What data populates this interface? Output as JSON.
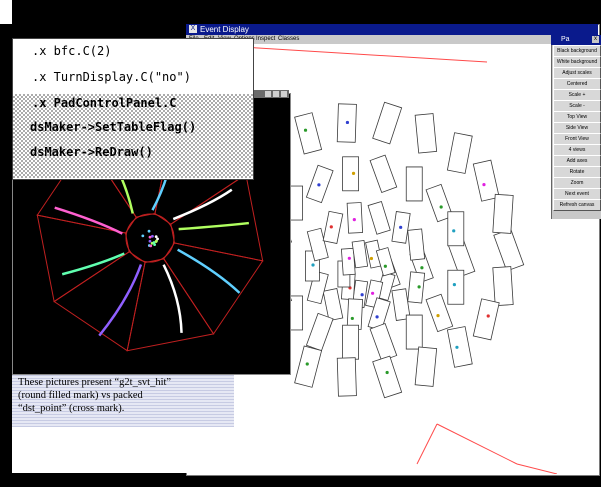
{
  "event_display": {
    "title": "Event Display",
    "menu": [
      "File",
      "Edit",
      "View",
      "Options",
      "Inspect",
      "Classes"
    ]
  },
  "palette": {
    "title": "Pa",
    "buttons": [
      "Black background",
      "White background",
      "Adjust scales",
      "Centered",
      "Scale +",
      "Scale -",
      "Top View",
      "Side View",
      "Front View",
      "4 views",
      "Add axes",
      "Rotate",
      "Zoom",
      "Next event",
      "Refresh canvas"
    ]
  },
  "commands": [
    ".x bfc.C(2)",
    ".x TurnDisplay.C(\"no\")",
    ".x PadControlPanel.C",
    "dsMaker->SetTableFlag()",
    "dsMaker->ReDraw()"
  ],
  "caption": {
    "line1": "These pictures present “g2t_svt_hit”",
    "line2": "(round filled mark)  vs packed",
    "line3": "“dst_point” (cross mark)."
  },
  "colors": {
    "title_bar": "#0a1a8c",
    "wire": "#ff4a4a",
    "ladder": "#3a3a3a"
  }
}
